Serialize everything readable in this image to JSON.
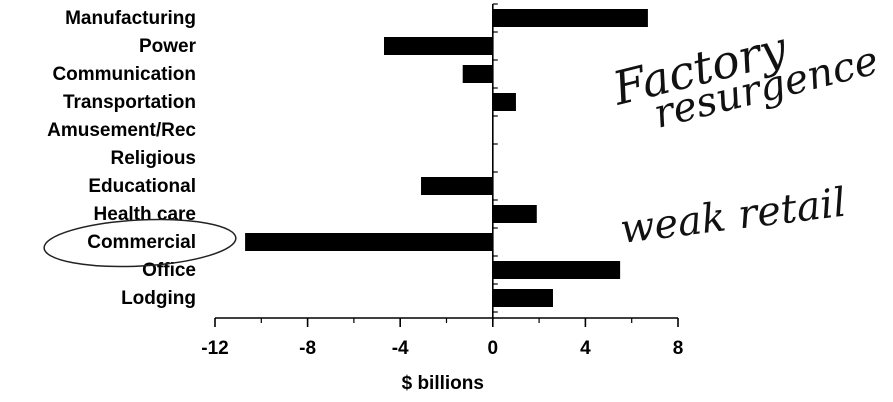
{
  "chart_data": {
    "type": "bar",
    "orientation": "horizontal",
    "categories": [
      "Manufacturing",
      "Power",
      "Communication",
      "Transportation",
      "Amusement/Rec",
      "Religious",
      "Educational",
      "Health care",
      "Commercial",
      "Office",
      "Lodging"
    ],
    "values": [
      6.7,
      -4.7,
      -1.3,
      1.0,
      0.0,
      0.0,
      -3.1,
      1.9,
      -10.7,
      5.5,
      2.6
    ],
    "xlabel": "$ billions",
    "ylabel": "",
    "title": "",
    "xlim": [
      -12,
      8
    ],
    "xticks": [
      -12,
      -8,
      -4,
      0,
      4,
      8
    ],
    "xtick_labels": [
      "-12",
      "-8",
      "-4",
      "0",
      "4",
      "8"
    ],
    "grid": false,
    "bar_color": "#000000",
    "annotations": [
      {
        "text": "Factory",
        "target": "Manufacturing"
      },
      {
        "text": "resurgence",
        "target": "Manufacturing"
      },
      {
        "text": "weak retail",
        "target": "Commercial"
      }
    ],
    "highlighted_category": "Commercial"
  }
}
